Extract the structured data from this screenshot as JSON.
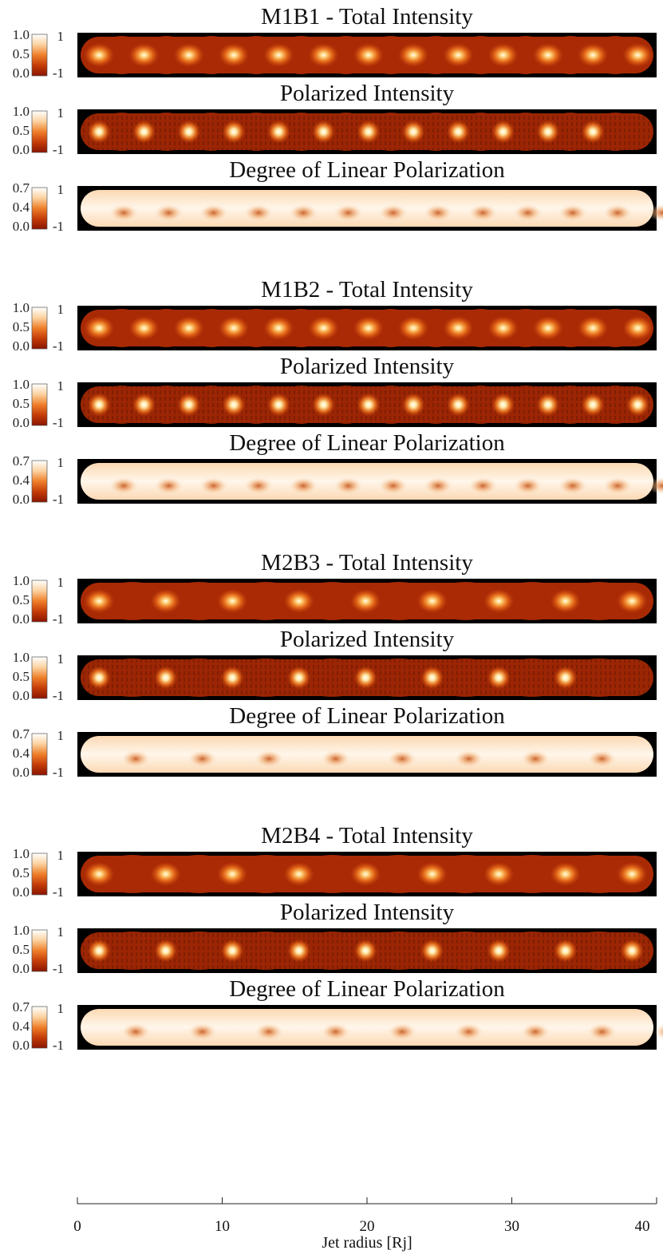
{
  "chart_data": {
    "type": "heatmap",
    "xlabel": "Jet radius [Rj]",
    "xlim": [
      0,
      40
    ],
    "x_ticks": [
      "0",
      "10",
      "20",
      "30",
      "40"
    ],
    "panels": [
      {
        "title": "M1B1 - Total Intensity",
        "kind": "total",
        "colorbar": {
          "ticks": [
            "1.0",
            "0.5",
            "0.0"
          ],
          "range": [
            0.0,
            1.0
          ]
        },
        "aux_axis": {
          "ticks": [
            "1",
            "-1"
          ]
        },
        "knots": 13,
        "knot_spacing_rj": 3.1,
        "gap_after": false
      },
      {
        "title": "Polarized Intensity",
        "kind": "polarized",
        "colorbar": {
          "ticks": [
            "1.0",
            "0.5",
            "0.0"
          ],
          "range": [
            0.0,
            1.0
          ]
        },
        "aux_axis": {
          "ticks": [
            "1",
            "-1"
          ]
        },
        "knots": 12,
        "knot_spacing_rj": 3.1,
        "gap_after": false
      },
      {
        "title": "Degree of Linear Polarization",
        "kind": "degree",
        "colorbar": {
          "ticks": [
            "0.7",
            "0.4",
            "0.0"
          ],
          "range": [
            0.0,
            0.7
          ]
        },
        "aux_axis": {
          "ticks": [
            "1",
            "-1"
          ]
        },
        "knots": 13,
        "knot_spacing_rj": 3.1,
        "gap_after": true
      },
      {
        "title": "M1B2 - Total Intensity",
        "kind": "total",
        "colorbar": {
          "ticks": [
            "1.0",
            "0.5",
            "0.0"
          ],
          "range": [
            0.0,
            1.0
          ]
        },
        "aux_axis": {
          "ticks": [
            "1",
            "-1"
          ]
        },
        "knots": 13,
        "knot_spacing_rj": 3.1,
        "gap_after": false
      },
      {
        "title": "Polarized Intensity",
        "kind": "polarized",
        "colorbar": {
          "ticks": [
            "1.0",
            "0.5",
            "0.0"
          ],
          "range": [
            0.0,
            1.0
          ]
        },
        "aux_axis": {
          "ticks": [
            "1",
            "-1"
          ]
        },
        "knots": 13,
        "knot_spacing_rj": 3.1,
        "gap_after": false
      },
      {
        "title": "Degree of Linear Polarization",
        "kind": "degree",
        "colorbar": {
          "ticks": [
            "0.7",
            "0.4",
            "0.0"
          ],
          "range": [
            0.0,
            0.7
          ]
        },
        "aux_axis": {
          "ticks": [
            "1",
            "-1"
          ]
        },
        "knots": 13,
        "knot_spacing_rj": 3.1,
        "gap_after": true
      },
      {
        "title": "M2B3 - Total Intensity",
        "kind": "total",
        "colorbar": {
          "ticks": [
            "1.0",
            "0.5",
            "0.0"
          ],
          "range": [
            0.0,
            1.0
          ]
        },
        "aux_axis": {
          "ticks": [
            "1",
            "-1"
          ]
        },
        "knots": 9,
        "knot_spacing_rj": 4.6,
        "gap_after": false
      },
      {
        "title": "Polarized Intensity",
        "kind": "polarized",
        "colorbar": {
          "ticks": [
            "1.0",
            "0.5",
            "0.0"
          ],
          "range": [
            0.0,
            1.0
          ]
        },
        "aux_axis": {
          "ticks": [
            "1",
            "-1"
          ]
        },
        "knots": 8,
        "knot_spacing_rj": 4.6,
        "gap_after": false
      },
      {
        "title": "Degree of Linear Polarization",
        "kind": "degree",
        "colorbar": {
          "ticks": [
            "0.7",
            "0.4",
            "0.0"
          ],
          "range": [
            0.0,
            0.7
          ]
        },
        "aux_axis": {
          "ticks": [
            "1",
            "-1"
          ]
        },
        "knots": 8,
        "knot_spacing_rj": 4.6,
        "gap_after": true
      },
      {
        "title": "M2B4 - Total Intensity",
        "kind": "total",
        "colorbar": {
          "ticks": [
            "1.0",
            "0.5",
            "0.0"
          ],
          "range": [
            0.0,
            1.0
          ]
        },
        "aux_axis": {
          "ticks": [
            "1",
            "-1"
          ]
        },
        "knots": 9,
        "knot_spacing_rj": 4.6,
        "gap_after": false
      },
      {
        "title": "Polarized Intensity",
        "kind": "polarized",
        "colorbar": {
          "ticks": [
            "1.0",
            "0.5",
            "0.0"
          ],
          "range": [
            0.0,
            1.0
          ]
        },
        "aux_axis": {
          "ticks": [
            "1",
            "-1"
          ]
        },
        "knots": 9,
        "knot_spacing_rj": 4.6,
        "gap_after": false
      },
      {
        "title": "Degree of Linear Polarization",
        "kind": "degree",
        "colorbar": {
          "ticks": [
            "0.7",
            "0.4",
            "0.0"
          ],
          "range": [
            0.0,
            0.7
          ]
        },
        "aux_axis": {
          "ticks": [
            "1",
            "-1"
          ]
        },
        "knots": 9,
        "knot_spacing_rj": 4.6,
        "gap_after": false
      }
    ],
    "colormap": [
      "#000000",
      "#8a1400",
      "#c43c08",
      "#ef7f2a",
      "#fbd2a0",
      "#ffffff"
    ]
  }
}
